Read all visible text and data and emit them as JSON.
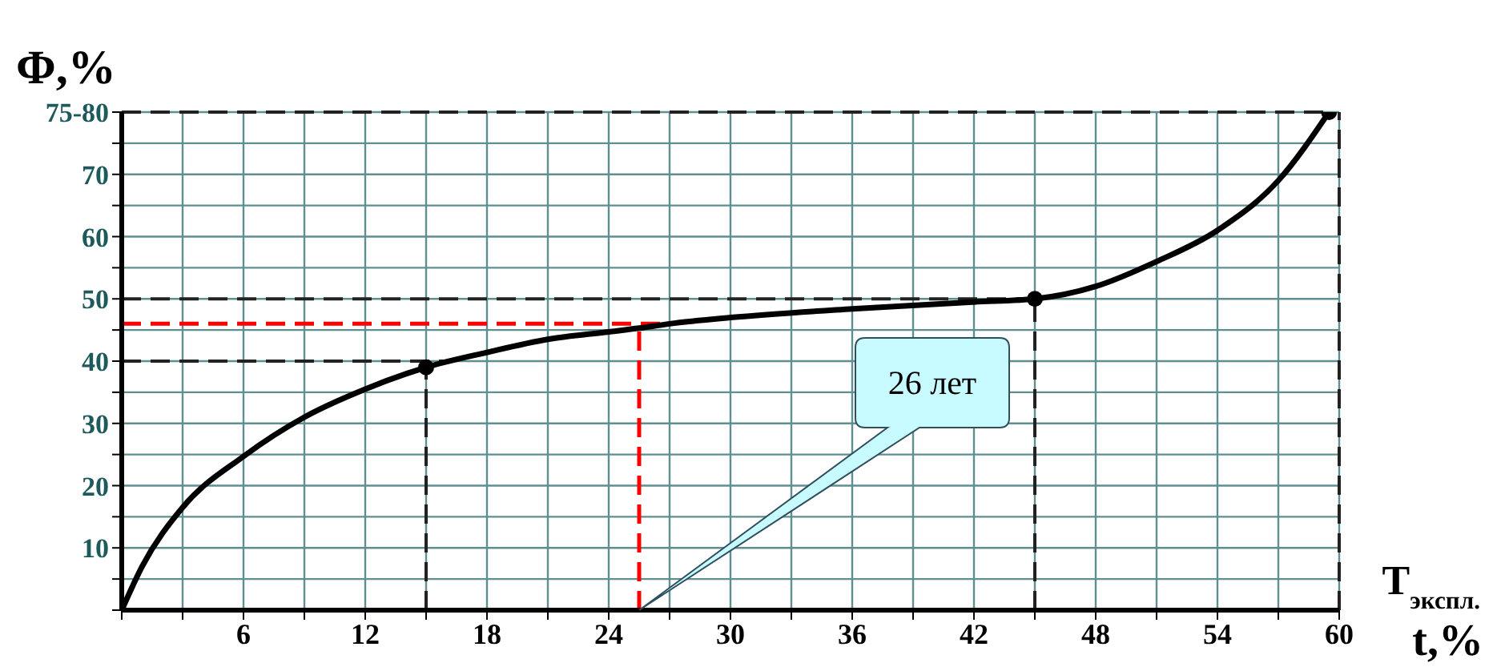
{
  "chart_data": {
    "type": "line",
    "ylabel": "Φ,%",
    "xlabel": "t,%",
    "annotations": [
      "T$_{экспл.}$",
      "26 лет"
    ],
    "x": [
      0,
      1,
      3,
      6,
      9,
      12,
      15,
      18,
      21,
      24,
      25.5,
      27,
      30,
      36,
      42,
      45,
      48,
      51,
      54,
      57,
      59.5
    ],
    "series": [
      {
        "color": "#000000",
        "values": [
          0,
          7,
          16.5,
          24.7,
          31,
          35.5,
          39,
          41.4,
          43.5,
          44.7,
          45.3,
          46,
          47,
          48.4,
          49.5,
          50,
          52,
          56,
          61,
          69,
          80
        ]
      },
      {
        "type": "scatter",
        "color": "#000000",
        "x": [
          15,
          45,
          59.5
        ],
        "values": [
          39,
          50,
          80
        ],
        "marker": "circle"
      }
    ],
    "xlim": [
      0,
      60
    ],
    "ylim": [
      0,
      80
    ],
    "xticks": [
      {
        "value": 0,
        "label": null
      },
      {
        "value": 3,
        "label": null
      },
      6,
      {
        "value": 9,
        "label": null
      },
      12,
      {
        "value": 15,
        "label": null
      },
      18,
      {
        "value": 21,
        "label": null
      },
      24,
      {
        "value": 27,
        "label": null
      },
      30,
      {
        "value": 33,
        "label": null
      },
      36,
      {
        "value": 39,
        "label": null
      },
      42,
      {
        "value": 45,
        "label": null
      },
      48,
      {
        "value": 51,
        "label": null
      },
      54,
      {
        "value": 57,
        "label": null
      },
      60
    ],
    "yticks": [
      {
        "value": 0,
        "label": null
      },
      {
        "value": 5,
        "label": null
      },
      10,
      {
        "value": 15,
        "label": null
      },
      20,
      {
        "value": 25,
        "label": null
      },
      30,
      {
        "value": 35,
        "label": null
      },
      40,
      {
        "value": 45,
        "label": null
      },
      50,
      {
        "value": 55,
        "label": null
      },
      60,
      {
        "value": 65,
        "label": null
      },
      70,
      {
        "value": 75,
        "label": null
      },
      {
        "value": 80,
        "label": "75-80"
      }
    ],
    "grid": true,
    "marker": "none",
    "line_style": "solid",
    "ref_lines": [
      {
        "axis": "y",
        "value": 80,
        "color": "#222222",
        "line_style": "dashed"
      },
      {
        "axis": "y",
        "value": 50,
        "color": "#222222",
        "line_style": "dashed"
      },
      {
        "axis": "y",
        "value": 40,
        "color": "#222222",
        "line_style": "dashed"
      },
      {
        "axis": "y",
        "value": 46,
        "color": "#ff0000",
        "line_style": "dashed"
      },
      {
        "axis": "x",
        "value": 15,
        "color": "#222222",
        "line_style": "dashed"
      },
      {
        "axis": "x",
        "value": 45,
        "color": "#222222",
        "line_style": "dashed"
      },
      {
        "axis": "x",
        "value": 60,
        "color": "#222222",
        "line_style": "dashed"
      },
      {
        "axis": "x",
        "value": 25.5,
        "color": "#ff0000",
        "line_style": "dashed"
      }
    ]
  }
}
